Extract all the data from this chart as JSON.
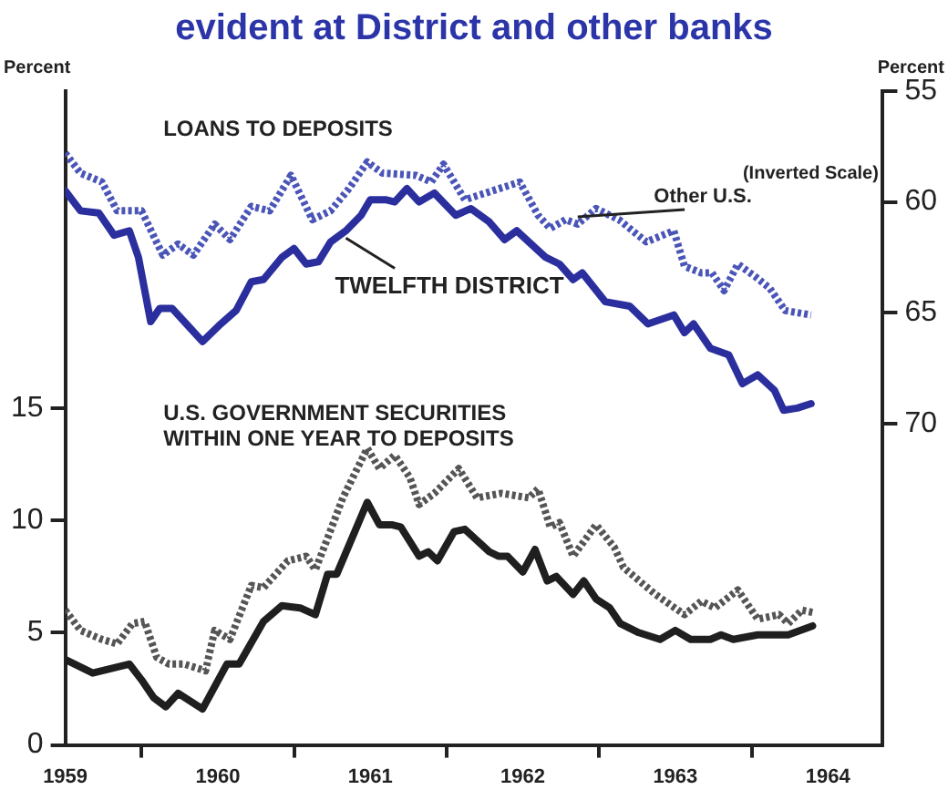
{
  "chart_data": {
    "type": "line",
    "title": "evident at District and other banks",
    "ylabel": "Percent",
    "y2label": "Percent",
    "annotations": [
      "LOANS TO DEPOSITS",
      "(Inverted Scale)",
      "U.S. GOVERNMENT SECURITIES\nWITHIN ONE YEAR TO DEPOSITS"
    ],
    "xlim": [
      1959,
      1964.36
    ],
    "xticks": [
      1959,
      1960,
      1961,
      1962,
      1963,
      1964,
      {
        "value": 1959.5,
        "label": null
      },
      {
        "value": 1960.5,
        "label": null
      },
      {
        "value": 1961.5,
        "label": null
      },
      {
        "value": 1962.5,
        "label": null
      },
      {
        "value": 1963.5,
        "label": null
      }
    ],
    "ylim": [
      0,
      29.1
    ],
    "yticks": [
      0,
      5,
      10,
      15
    ],
    "y2lim": [
      84.5,
      55
    ],
    "y2ticks": [
      55,
      60,
      65,
      70
    ],
    "grid": false,
    "legend": false,
    "marker": "none",
    "series": [
      {
        "name": "TWELFTH DISTRICT",
        "color": "#2b2f9e",
        "axis": "y2",
        "line_style": "solid",
        "x": [
          1959.0,
          1959.1,
          1959.22,
          1959.32,
          1959.42,
          1959.48,
          1959.56,
          1959.62,
          1959.7,
          1959.82,
          1959.9,
          1960.02,
          1960.12,
          1960.22,
          1960.3,
          1960.42,
          1960.5,
          1960.58,
          1960.66,
          1960.74,
          1960.84,
          1960.94,
          1961.0,
          1961.1,
          1961.16,
          1961.24,
          1961.32,
          1961.42,
          1961.56,
          1961.66,
          1961.78,
          1961.88,
          1961.96,
          1962.15,
          1962.24,
          1962.33,
          1962.39,
          1962.54,
          1962.7,
          1962.82,
          1962.99,
          1963.06,
          1963.12,
          1963.23,
          1963.35,
          1963.44,
          1963.54,
          1963.65,
          1963.71,
          1963.8,
          1963.89
        ],
        "values": [
          59.5,
          60.4,
          60.5,
          61.5,
          61.3,
          62.5,
          65.4,
          64.8,
          64.8,
          65.7,
          66.3,
          65.5,
          64.9,
          63.6,
          63.5,
          62.5,
          62.1,
          62.8,
          62.7,
          61.8,
          61.3,
          60.6,
          59.9,
          59.9,
          60.0,
          59.4,
          60.0,
          59.6,
          60.6,
          60.3,
          60.9,
          61.7,
          61.3,
          62.5,
          62.8,
          63.5,
          63.2,
          64.5,
          64.7,
          65.5,
          65.1,
          65.9,
          65.5,
          66.6,
          66.9,
          68.2,
          67.8,
          68.5,
          69.4,
          69.3,
          69.1
        ]
      },
      {
        "name": "Other U.S.",
        "color": "#4a55b8",
        "axis": "y2",
        "line_style": "dotted",
        "x": [
          1959.0,
          1959.1,
          1959.24,
          1959.34,
          1959.5,
          1959.64,
          1959.74,
          1959.84,
          1959.98,
          1960.08,
          1960.22,
          1960.34,
          1960.48,
          1960.62,
          1960.74,
          1960.86,
          1960.98,
          1961.08,
          1961.3,
          1961.4,
          1961.48,
          1961.62,
          1961.98,
          1962.1,
          1962.18,
          1962.28,
          1962.36,
          1962.48,
          1962.63,
          1962.81,
          1962.99,
          1963.06,
          1963.17,
          1963.24,
          1963.32,
          1963.41,
          1963.53,
          1963.62,
          1963.72,
          1963.89
        ],
        "values": [
          57.8,
          58.7,
          59.1,
          60.4,
          60.4,
          62.4,
          61.9,
          62.4,
          61.0,
          61.7,
          60.2,
          60.4,
          58.8,
          60.8,
          60.4,
          59.4,
          58.2,
          58.7,
          58.8,
          59.1,
          58.3,
          59.9,
          59.1,
          60.6,
          61.2,
          60.8,
          61.0,
          60.3,
          60.8,
          61.8,
          61.3,
          62.9,
          63.2,
          63.2,
          64.0,
          62.8,
          63.4,
          63.9,
          64.9,
          65.1
        ]
      },
      {
        "color": "#1f1f1f",
        "line_style": "solid",
        "x": [
          1959.0,
          1959.18,
          1959.42,
          1959.5,
          1959.58,
          1959.66,
          1959.74,
          1959.9,
          1960.06,
          1960.14,
          1960.3,
          1960.42,
          1960.54,
          1960.64,
          1960.72,
          1960.78,
          1960.98,
          1961.06,
          1961.14,
          1961.2,
          1961.32,
          1961.38,
          1961.44,
          1961.55,
          1961.62,
          1961.78,
          1961.84,
          1961.9,
          1962.0,
          1962.08,
          1962.16,
          1962.22,
          1962.33,
          1962.4,
          1962.48,
          1962.57,
          1962.64,
          1962.76,
          1962.9,
          1963.0,
          1963.1,
          1963.23,
          1963.3,
          1963.38,
          1963.54,
          1963.74,
          1963.9
        ],
        "values": [
          3.8,
          3.2,
          3.6,
          2.9,
          2.1,
          1.7,
          2.3,
          1.6,
          3.6,
          3.6,
          5.5,
          6.2,
          6.1,
          5.8,
          7.6,
          7.6,
          10.8,
          9.8,
          9.8,
          9.7,
          8.4,
          8.6,
          8.2,
          9.5,
          9.6,
          8.6,
          8.4,
          8.4,
          7.7,
          8.7,
          7.3,
          7.5,
          6.7,
          7.3,
          6.5,
          6.1,
          5.4,
          5.0,
          4.7,
          5.1,
          4.7,
          4.7,
          4.9,
          4.7,
          4.9,
          4.9,
          5.3
        ]
      },
      {
        "color": "#555555",
        "line_style": "dotted",
        "x": [
          1959.0,
          1959.1,
          1959.24,
          1959.34,
          1959.44,
          1959.52,
          1959.6,
          1959.68,
          1959.78,
          1959.92,
          1959.98,
          1960.08,
          1960.22,
          1960.3,
          1960.46,
          1960.58,
          1960.64,
          1960.72,
          1960.82,
          1960.98,
          1961.06,
          1961.16,
          1961.26,
          1961.32,
          1961.42,
          1961.58,
          1961.7,
          1961.86,
          1962.04,
          1962.1,
          1962.18,
          1962.24,
          1962.33,
          1962.48,
          1962.6,
          1962.66,
          1962.87,
          1963.06,
          1963.17,
          1963.26,
          1963.41,
          1963.54,
          1963.68,
          1963.74,
          1963.83,
          1963.9
        ],
        "values": [
          6.0,
          5.1,
          4.7,
          4.5,
          5.4,
          5.5,
          3.9,
          3.6,
          3.6,
          3.3,
          5.1,
          4.7,
          7.1,
          7.0,
          8.2,
          8.4,
          7.8,
          9.2,
          11.0,
          13.2,
          12.3,
          12.9,
          11.9,
          10.7,
          11.2,
          12.3,
          11.0,
          11.2,
          11.0,
          11.4,
          9.7,
          9.9,
          8.4,
          9.8,
          8.8,
          7.9,
          6.7,
          5.8,
          6.4,
          6.1,
          6.9,
          5.6,
          5.8,
          5.4,
          6.0,
          5.9
        ]
      }
    ]
  }
}
